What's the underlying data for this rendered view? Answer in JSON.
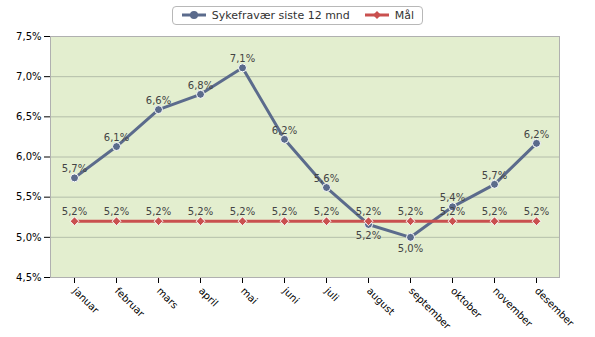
{
  "chart_data": {
    "type": "line",
    "categories": [
      "januar",
      "februar",
      "mars",
      "april",
      "mai",
      "juni",
      "juli",
      "august",
      "september",
      "oktober",
      "november",
      "desember"
    ],
    "series": [
      {
        "name": "Sykefravær siste 12 mnd",
        "color": "#5b6b8c",
        "marker": "circle",
        "values": [
          5.74,
          6.13,
          6.59,
          6.78,
          7.11,
          6.22,
          5.62,
          5.16,
          5.0,
          5.38,
          5.66,
          6.17
        ],
        "value_labels": [
          "5,7%",
          "6,1%",
          "6,6%",
          "6,8%",
          "7,1%",
          "6,2%",
          "5,6%",
          "5,2%",
          "5,0%",
          "5,4%",
          "5,7%",
          "6,2%"
        ]
      },
      {
        "name": "Mål",
        "color": "#c9504f",
        "marker": "diamond",
        "values": [
          5.2,
          5.2,
          5.2,
          5.2,
          5.2,
          5.2,
          5.2,
          5.2,
          5.2,
          5.2,
          5.2,
          5.2
        ],
        "value_labels": [
          "5,2%",
          "5,2%",
          "5,2%",
          "5,2%",
          "5,2%",
          "5,2%",
          "5,2%",
          "5,2%",
          "5,2%",
          "5,2%",
          "5,2%",
          "5,2%"
        ]
      }
    ],
    "ylim": [
      4.5,
      7.5
    ],
    "yticks": [
      {
        "value": 4.5,
        "label": "4,5%"
      },
      {
        "value": 5.0,
        "label": "5,0%"
      },
      {
        "value": 5.5,
        "label": "5,5%"
      },
      {
        "value": 6.0,
        "label": "6,0%"
      },
      {
        "value": 6.5,
        "label": "6,5%"
      },
      {
        "value": 7.0,
        "label": "7,0%"
      },
      {
        "value": 7.5,
        "label": "7,5%"
      }
    ],
    "grid": true,
    "legend": "top",
    "data_labels": true
  }
}
